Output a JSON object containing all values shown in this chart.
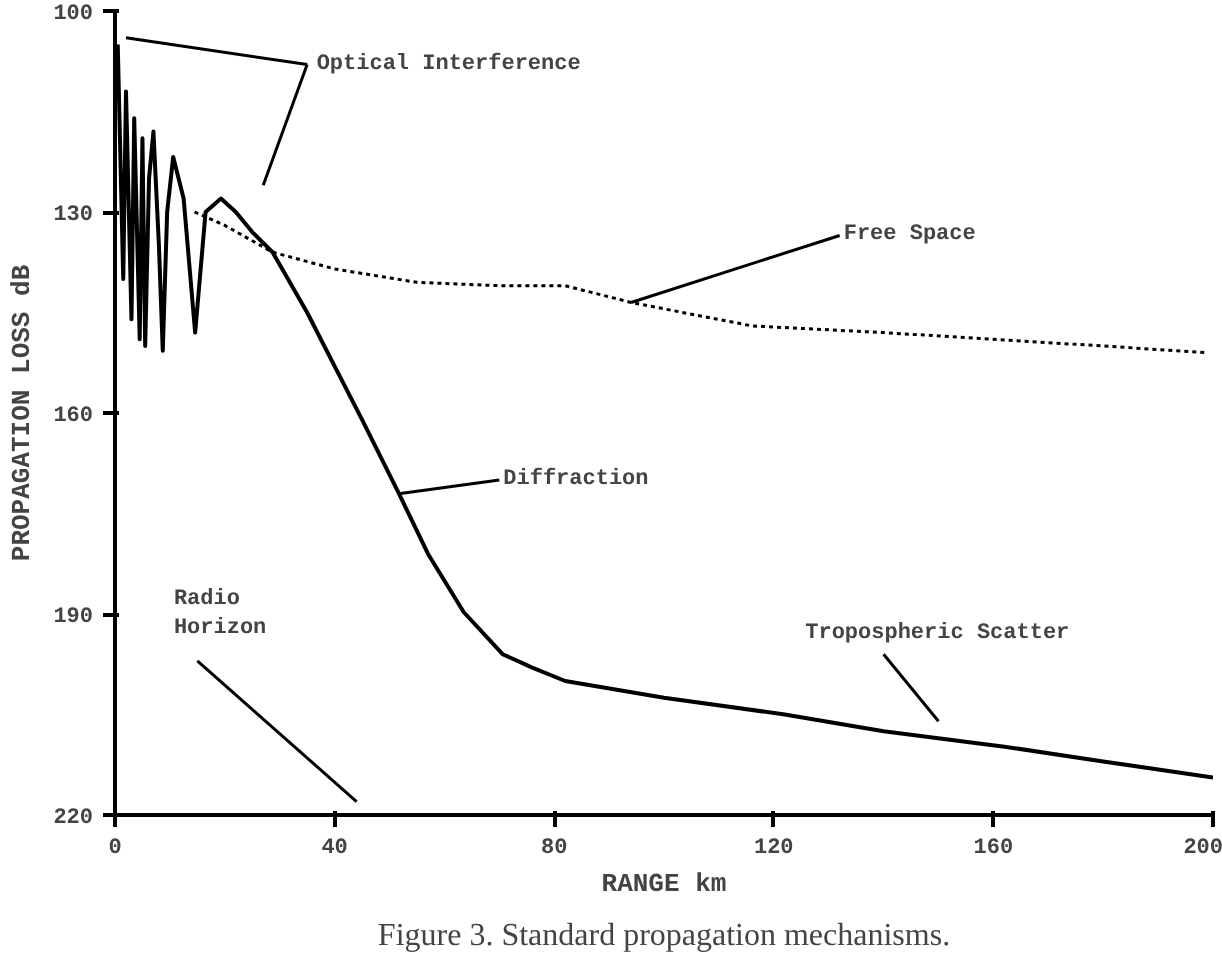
{
  "chart_data": {
    "type": "line",
    "xlabel": "RANGE km",
    "ylabel": "PROPAGATION LOSS dB",
    "xlim": [
      0,
      200
    ],
    "ylim": [
      220,
      100
    ],
    "xticks": [
      0,
      40,
      80,
      120,
      160,
      200
    ],
    "yticks": [
      100,
      130,
      160,
      190,
      220
    ],
    "grid": false,
    "marker": "none",
    "series": [
      {
        "color": "#000000",
        "line_style": "solid",
        "x": [
          0.5,
          1.5,
          2,
          3,
          3.5,
          4.5,
          5,
          5.5,
          6.2,
          7,
          8,
          8.7,
          9.5,
          10.6,
          12.5,
          14.6,
          16.5,
          19.3,
          22,
          25,
          28.7,
          35,
          40,
          45,
          51.7,
          57,
          63.5,
          70.6,
          76,
          82,
          100,
          122,
          140,
          162,
          180,
          200
        ],
        "values": [
          105,
          140,
          112,
          146,
          116,
          149,
          119,
          150,
          125,
          118,
          135,
          150.7,
          130,
          121.8,
          128,
          148,
          130,
          128,
          130,
          133,
          136,
          145,
          153,
          161,
          172,
          181,
          189.7,
          196,
          198,
          200,
          202.5,
          205,
          207.5,
          209.8,
          212,
          214.4
        ]
      },
      {
        "color": "#000000",
        "line_style": "dotted",
        "x": [
          14.5,
          20,
          28.7,
          40,
          55,
          70,
          82,
          94,
          116,
          140,
          160,
          180,
          199
        ],
        "values": [
          130,
          132,
          136,
          138.5,
          140.5,
          141,
          141,
          143.5,
          147,
          148,
          149,
          150,
          151
        ]
      }
    ],
    "annotations": [
      "Optical Interference",
      {
        "text": "Free Space",
        "x": 94,
        "y": 143.5
      },
      {
        "text": "Diffraction",
        "x": 52,
        "y": 172
      },
      "Tropospheric Scatter",
      "Radio\nHorizon",
      "Figure 3. Standard propagation mechanisms."
    ]
  }
}
